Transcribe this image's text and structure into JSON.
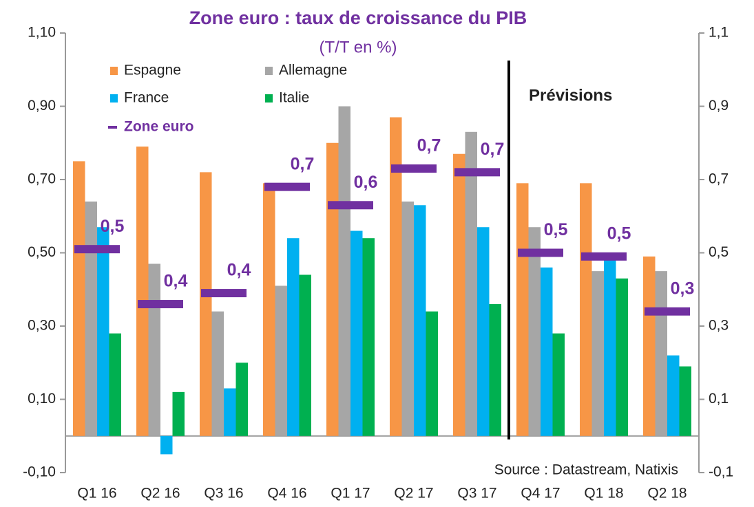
{
  "chart_data": {
    "type": "bar",
    "title": "Zone euro : taux de croissance du PIB",
    "subtitle": "(T/T en %)",
    "annotations": [
      "Prévisions",
      "Source : Datastream, Natixis"
    ],
    "categories": [
      "Q1 16",
      "Q2 16",
      "Q3 16",
      "Q4 16",
      "Q1 17",
      "Q2 17",
      "Q3 17",
      "Q4 17",
      "Q1 18",
      "Q2 18"
    ],
    "series": [
      {
        "name": "Espagne",
        "color": "#f79646",
        "kind": "bar",
        "values": [
          0.75,
          0.79,
          0.72,
          0.69,
          0.8,
          0.87,
          0.77,
          0.69,
          0.69,
          0.49
        ]
      },
      {
        "name": "Allemagne",
        "color": "#a6a6a6",
        "kind": "bar",
        "values": [
          0.64,
          0.47,
          0.34,
          0.41,
          0.9,
          0.64,
          0.83,
          0.57,
          0.45,
          0.45
        ]
      },
      {
        "name": "France",
        "color": "#00b0f0",
        "kind": "bar",
        "values": [
          0.57,
          -0.05,
          0.13,
          0.54,
          0.56,
          0.63,
          0.57,
          0.46,
          0.49,
          0.22
        ]
      },
      {
        "name": "Italie",
        "color": "#00b050",
        "kind": "bar",
        "values": [
          0.28,
          0.12,
          0.2,
          0.44,
          0.54,
          0.34,
          0.36,
          0.28,
          0.43,
          0.19
        ]
      },
      {
        "name": "Zone euro",
        "color": "#7030a0",
        "kind": "marker",
        "values": [
          0.51,
          0.36,
          0.39,
          0.68,
          0.63,
          0.73,
          0.72,
          0.5,
          0.49,
          0.34
        ],
        "value_labels": [
          "0,5",
          "0,4",
          "0,4",
          "0,7",
          "0,6",
          "0,7",
          "0,7",
          "0,5",
          "0,5",
          "0,3"
        ]
      }
    ],
    "ylim": [
      -0.1,
      1.1
    ],
    "yticks": [
      {
        "value": -0.1,
        "label": "-0,10"
      },
      {
        "value": 0.1,
        "label": "0,10"
      },
      {
        "value": 0.3,
        "label": "0,30"
      },
      {
        "value": 0.5,
        "label": "0,50"
      },
      {
        "value": 0.7,
        "label": "0,70"
      },
      {
        "value": 0.9,
        "label": "0,90"
      },
      {
        "value": 1.1,
        "label": "1,10"
      }
    ],
    "y2lim": [
      -0.1,
      1.1
    ],
    "y2ticks": [
      {
        "value": -0.1,
        "label": "-0,1"
      },
      {
        "value": 0.1,
        "label": "0,1"
      },
      {
        "value": 0.3,
        "label": "0,3"
      },
      {
        "value": 0.5,
        "label": "0,5"
      },
      {
        "value": 0.7,
        "label": "0,7"
      },
      {
        "value": 0.9,
        "label": "0,9"
      },
      {
        "value": 1.1,
        "label": "1,1"
      }
    ]
  }
}
